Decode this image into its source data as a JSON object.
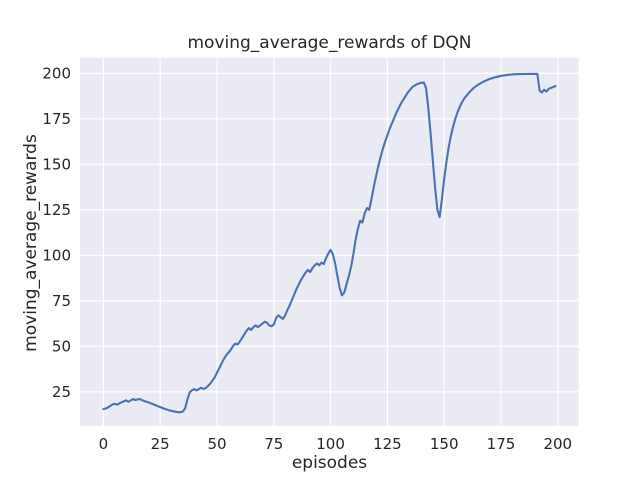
{
  "figure": {
    "background": "#ffffff"
  },
  "chart_data": {
    "type": "line",
    "title": "moving_average_rewards of DQN",
    "xlabel": "episodes",
    "ylabel": "moving_average_rewards",
    "xlim": [
      -10.3,
      209.2
    ],
    "ylim": [
      6.2,
      208.6
    ],
    "xticks": [
      0,
      25,
      50,
      75,
      100,
      125,
      150,
      175,
      200
    ],
    "yticks": [
      25,
      50,
      75,
      100,
      125,
      150,
      175,
      200
    ],
    "grid": true,
    "legend": "none",
    "style": {
      "axes_background": "#EAEAF2",
      "gridline_color": "#FFFFFF",
      "line_color": "#4C72B0",
      "text_color": "#262626"
    },
    "series": [
      {
        "name": "moving_average_rewards",
        "points": [
          [
            0,
            15.5
          ],
          [
            1,
            15.8
          ],
          [
            2,
            16.4
          ],
          [
            3,
            17.2
          ],
          [
            4,
            18.0
          ],
          [
            5,
            18.4
          ],
          [
            6,
            17.9
          ],
          [
            7,
            18.6
          ],
          [
            8,
            19.2
          ],
          [
            9,
            19.8
          ],
          [
            10,
            20.3
          ],
          [
            11,
            19.5
          ],
          [
            12,
            20.2
          ],
          [
            13,
            21.0
          ],
          [
            14,
            20.5
          ],
          [
            15,
            20.8
          ],
          [
            16,
            21.0
          ],
          [
            17,
            20.4
          ],
          [
            18,
            19.9
          ],
          [
            19,
            19.5
          ],
          [
            20,
            19.1
          ],
          [
            21,
            18.6
          ],
          [
            22,
            18.1
          ],
          [
            23,
            17.6
          ],
          [
            24,
            17.1
          ],
          [
            25,
            16.6
          ],
          [
            26,
            16.1
          ],
          [
            27,
            15.6
          ],
          [
            28,
            15.2
          ],
          [
            29,
            14.8
          ],
          [
            30,
            14.5
          ],
          [
            31,
            14.2
          ],
          [
            32,
            14.0
          ],
          [
            33,
            13.8
          ],
          [
            34,
            13.8
          ],
          [
            35,
            14.2
          ],
          [
            36,
            16.0
          ],
          [
            37,
            21.0
          ],
          [
            38,
            24.8
          ],
          [
            39,
            25.8
          ],
          [
            40,
            26.5
          ],
          [
            41,
            25.7
          ],
          [
            42,
            26.5
          ],
          [
            43,
            27.2
          ],
          [
            44,
            26.6
          ],
          [
            45,
            27.0
          ],
          [
            46,
            28.2
          ],
          [
            47,
            29.5
          ],
          [
            48,
            31.2
          ],
          [
            49,
            33.0
          ],
          [
            50,
            35.5
          ],
          [
            51,
            38.0
          ],
          [
            52,
            40.5
          ],
          [
            53,
            43.0
          ],
          [
            54,
            45.0
          ],
          [
            55,
            46.5
          ],
          [
            56,
            48.0
          ],
          [
            57,
            50.0
          ],
          [
            58,
            51.5
          ],
          [
            59,
            51.0
          ],
          [
            60,
            52.5
          ],
          [
            61,
            54.5
          ],
          [
            62,
            56.5
          ],
          [
            63,
            58.5
          ],
          [
            64,
            60.0
          ],
          [
            65,
            59.0
          ],
          [
            66,
            60.5
          ],
          [
            67,
            61.5
          ],
          [
            68,
            60.5
          ],
          [
            69,
            61.5
          ],
          [
            70,
            62.5
          ],
          [
            71,
            63.5
          ],
          [
            72,
            63.0
          ],
          [
            73,
            61.5
          ],
          [
            74,
            61.0
          ],
          [
            75,
            62.0
          ],
          [
            76,
            65.5
          ],
          [
            77,
            67.0
          ],
          [
            78,
            66.0
          ],
          [
            79,
            65.0
          ],
          [
            80,
            67.0
          ],
          [
            81,
            70.0
          ],
          [
            82,
            72.5
          ],
          [
            83,
            75.5
          ],
          [
            84,
            78.5
          ],
          [
            85,
            81.5
          ],
          [
            86,
            84.0
          ],
          [
            87,
            86.5
          ],
          [
            88,
            88.5
          ],
          [
            89,
            90.5
          ],
          [
            90,
            92.0
          ],
          [
            91,
            90.8
          ],
          [
            92,
            93.0
          ],
          [
            93,
            94.5
          ],
          [
            94,
            95.5
          ],
          [
            95,
            94.5
          ],
          [
            96,
            96.0
          ],
          [
            97,
            95.2
          ],
          [
            98,
            98.5
          ],
          [
            99,
            101.0
          ],
          [
            100,
            103.0
          ],
          [
            101,
            100.5
          ],
          [
            102,
            95.5
          ],
          [
            103,
            88.5
          ],
          [
            104,
            82.0
          ],
          [
            105,
            78.0
          ],
          [
            106,
            79.5
          ],
          [
            107,
            84.0
          ],
          [
            108,
            88.5
          ],
          [
            109,
            93.5
          ],
          [
            110,
            100.5
          ],
          [
            111,
            108.5
          ],
          [
            112,
            114.5
          ],
          [
            113,
            119.0
          ],
          [
            114,
            118.0
          ],
          [
            115,
            123.0
          ],
          [
            116,
            126.0
          ],
          [
            117,
            125.0
          ],
          [
            118,
            131.0
          ],
          [
            119,
            137.5
          ],
          [
            120,
            143.5
          ],
          [
            121,
            149.0
          ],
          [
            122,
            154.0
          ],
          [
            123,
            158.5
          ],
          [
            124,
            162.5
          ],
          [
            125,
            166.0
          ],
          [
            126,
            169.5
          ],
          [
            127,
            172.5
          ],
          [
            128,
            175.5
          ],
          [
            129,
            178.5
          ],
          [
            130,
            181.0
          ],
          [
            131,
            183.5
          ],
          [
            132,
            185.5
          ],
          [
            133,
            187.5
          ],
          [
            134,
            189.5
          ],
          [
            135,
            191.0
          ],
          [
            136,
            192.5
          ],
          [
            137,
            193.3
          ],
          [
            138,
            194.0
          ],
          [
            139,
            194.5
          ],
          [
            140,
            194.8
          ],
          [
            141,
            195.0
          ],
          [
            142,
            192.0
          ],
          [
            143,
            181.0
          ],
          [
            144,
            167.0
          ],
          [
            145,
            152.0
          ],
          [
            146,
            137.0
          ],
          [
            147,
            125.0
          ],
          [
            148,
            121.0
          ],
          [
            149,
            131.0
          ],
          [
            150,
            142.0
          ],
          [
            151,
            151.5
          ],
          [
            152,
            159.5
          ],
          [
            153,
            166.0
          ],
          [
            154,
            171.0
          ],
          [
            155,
            175.5
          ],
          [
            156,
            179.0
          ],
          [
            157,
            182.0
          ],
          [
            158,
            184.5
          ],
          [
            159,
            186.5
          ],
          [
            160,
            188.0
          ],
          [
            161,
            189.5
          ],
          [
            162,
            190.8
          ],
          [
            163,
            192.0
          ],
          [
            164,
            193.0
          ],
          [
            165,
            193.8
          ],
          [
            166,
            194.5
          ],
          [
            167,
            195.2
          ],
          [
            168,
            195.8
          ],
          [
            169,
            196.4
          ],
          [
            170,
            196.9
          ],
          [
            171,
            197.3
          ],
          [
            172,
            197.7
          ],
          [
            173,
            198.0
          ],
          [
            174,
            198.3
          ],
          [
            175,
            198.6
          ],
          [
            176,
            198.8
          ],
          [
            177,
            199.0
          ],
          [
            178,
            199.2
          ],
          [
            179,
            199.3
          ],
          [
            180,
            199.4
          ],
          [
            181,
            199.5
          ],
          [
            182,
            199.55
          ],
          [
            183,
            199.6
          ],
          [
            184,
            199.6
          ],
          [
            185,
            199.65
          ],
          [
            186,
            199.65
          ],
          [
            187,
            199.7
          ],
          [
            188,
            199.7
          ],
          [
            189,
            199.7
          ],
          [
            190,
            199.7
          ],
          [
            191,
            199.7
          ],
          [
            192,
            190.5
          ],
          [
            193,
            189.5
          ],
          [
            194,
            191.0
          ],
          [
            195,
            190.0
          ],
          [
            196,
            191.5
          ],
          [
            197,
            192.0
          ],
          [
            198,
            192.5
          ],
          [
            199,
            193.0
          ]
        ]
      }
    ]
  }
}
